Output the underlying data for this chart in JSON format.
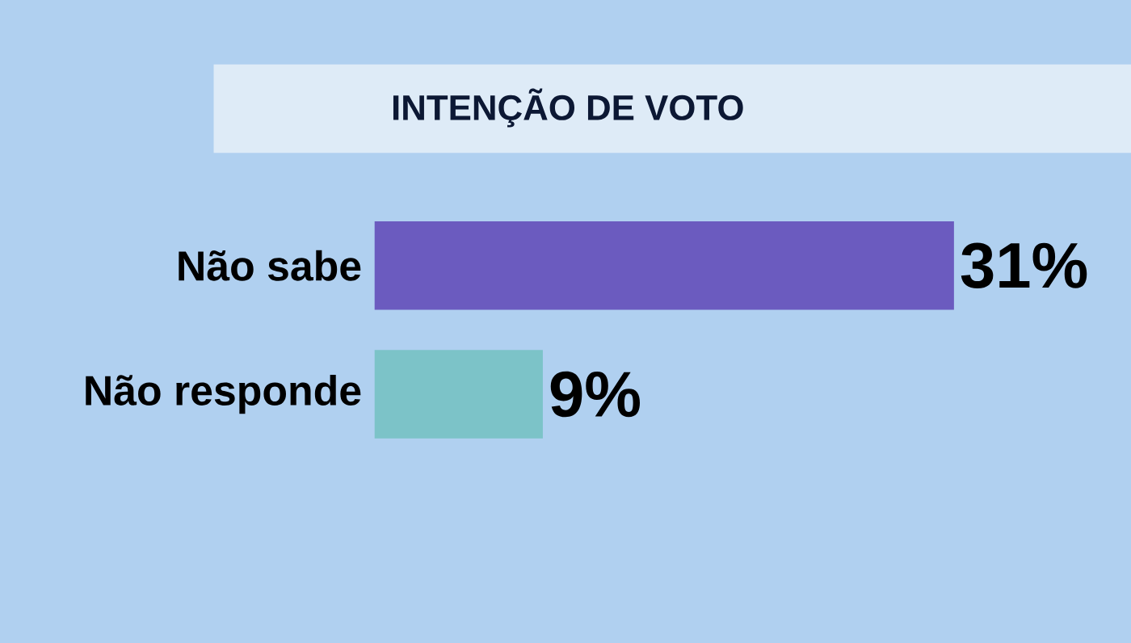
{
  "chart_data": {
    "type": "bar",
    "orientation": "horizontal",
    "title": "INTENÇÃO DE VOTO",
    "categories": [
      "Não sabe",
      "Não responde"
    ],
    "values": [
      31,
      9
    ],
    "colors": [
      "#6b5bbf",
      "#7cc3c8"
    ],
    "value_labels": [
      "31%",
      "9%"
    ]
  }
}
